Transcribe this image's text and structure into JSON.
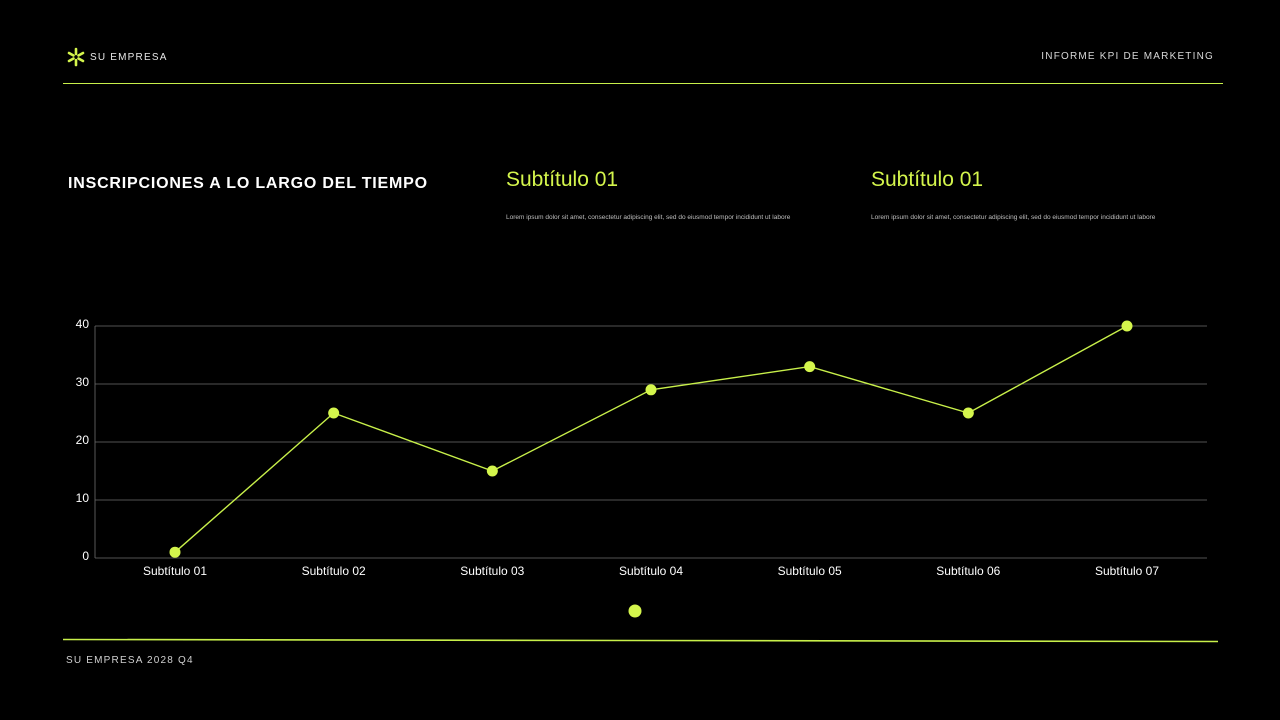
{
  "header": {
    "brand": "SU EMPRESA",
    "brand_icon": "asterisk-icon",
    "report_title": "INFORME KPI DE MARKETING"
  },
  "section": {
    "title": "INSCRIPCIONES A LO LARGO DEL TIEMPO"
  },
  "subtitles": [
    {
      "title": "Subtítulo 01",
      "body": "Lorem ipsum dolor sit amet, consectetur adipiscing elit, sed do eiusmod tempor incididunt ut labore"
    },
    {
      "title": "Subtítulo 01",
      "body": "Lorem ipsum dolor sit amet, consectetur adipiscing elit, sed do eiusmod tempor incididunt ut labore"
    }
  ],
  "footer": {
    "text": "SU EMPRESA 2028 Q4"
  },
  "colors": {
    "background": "#000000",
    "accent": "#c8f04a",
    "marker": "#d4f54c",
    "grid": "#6e6e6e",
    "text": "#ffffff"
  },
  "chart_data": {
    "type": "line",
    "categories": [
      "Subtítulo 01",
      "Subtítulo 02",
      "Subtítulo 03",
      "Subtítulo 04",
      "Subtítulo 05",
      "Subtítulo 06",
      "Subtítulo 07"
    ],
    "series": [
      {
        "values": [
          1,
          25,
          15,
          29,
          33,
          25,
          40
        ]
      }
    ],
    "yticks": [
      "0",
      "10",
      "20",
      "30",
      "40"
    ],
    "ylim": [
      0,
      40
    ],
    "grid": true,
    "legend": "bottom-center"
  }
}
